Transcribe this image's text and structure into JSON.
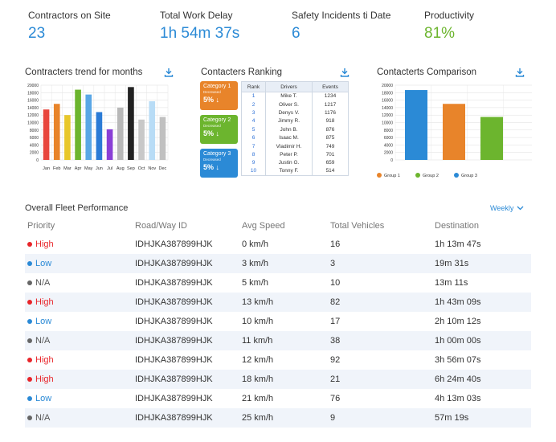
{
  "kpis": [
    {
      "label": "Contractors on Site",
      "value": "23",
      "color": "#2b8ad6"
    },
    {
      "label": "Total Work Delay",
      "value": "1h 54m 37s",
      "color": "#2b8ad6"
    },
    {
      "label": "Safety Incidents ti Date",
      "value": "6",
      "color": "#2b8ad6"
    },
    {
      "label": "Productivity",
      "value": "81%",
      "color": "#6cb52e"
    }
  ],
  "trend": {
    "title": "Contracters trend for months",
    "download_icon": "download-icon",
    "chart_data": {
      "type": "bar",
      "categories": [
        "Jan",
        "Feb",
        "Mar",
        "Apr",
        "May",
        "Jun",
        "Jul",
        "Aug",
        "Sep",
        "Oct",
        "Nov",
        "Dec"
      ],
      "values": [
        13500,
        15000,
        12000,
        18800,
        17500,
        12800,
        8200,
        14000,
        19500,
        10800,
        15700,
        11500
      ],
      "colors": [
        "#e8453c",
        "#e8842a",
        "#e8c72a",
        "#6cb52e",
        "#5aa7e6",
        "#2b7bd6",
        "#8a3fd6",
        "#b8b8b8",
        "#222222",
        "#c8c8c8",
        "#b8dcf6",
        "#c0c0c0"
      ],
      "ylim": [
        0,
        20000
      ],
      "yticks": [
        "20000",
        "18000",
        "16000",
        "14000",
        "12000",
        "10000",
        "8000",
        "6000",
        "4000",
        "2000",
        "0"
      ]
    }
  },
  "ranking": {
    "title": "Contacters Ranking",
    "categories": [
      {
        "title": "Category 1",
        "sub": "Decreased",
        "pct": "5% ↓",
        "color": "#e8842a"
      },
      {
        "title": "Category 2",
        "sub": "Decreased",
        "pct": "5% ↓",
        "color": "#6cb52e"
      },
      {
        "title": "Category 3",
        "sub": "Decreased",
        "pct": "5% ↓",
        "color": "#2b8ad6"
      }
    ],
    "headers": [
      "Rank",
      "Drivers",
      "Events"
    ],
    "rows": [
      {
        "rank": "1",
        "driver": "Mike T.",
        "events": "1234"
      },
      {
        "rank": "2",
        "driver": "Oliver S.",
        "events": "1217"
      },
      {
        "rank": "3",
        "driver": "Denys V.",
        "events": "1176"
      },
      {
        "rank": "4",
        "driver": "Jimmy R.",
        "events": "918"
      },
      {
        "rank": "5",
        "driver": "John B.",
        "events": "876"
      },
      {
        "rank": "6",
        "driver": "Isaac M.",
        "events": "875"
      },
      {
        "rank": "7",
        "driver": "Vladimir H.",
        "events": "749"
      },
      {
        "rank": "8",
        "driver": "Peter P.",
        "events": "701"
      },
      {
        "rank": "9",
        "driver": "Justin G.",
        "events": "659"
      },
      {
        "rank": "10",
        "driver": "Tonny F.",
        "events": "514"
      }
    ]
  },
  "comparison": {
    "title": "Contacterts Comparison",
    "chart_data": {
      "type": "bar",
      "categories": [
        "Group 1",
        "Group 2",
        "Group 3"
      ],
      "series": [
        {
          "name": "Group 3",
          "value": 18700,
          "color": "#2b8ad6"
        },
        {
          "name": "Group 1",
          "value": 15000,
          "color": "#e8842a"
        },
        {
          "name": "Group 2",
          "value": 11500,
          "color": "#6cb52e"
        }
      ],
      "legend": [
        {
          "name": "Group 1",
          "color": "#e8842a"
        },
        {
          "name": "Group 2",
          "color": "#6cb52e"
        },
        {
          "name": "Group 3",
          "color": "#2b8ad6"
        }
      ],
      "ylim": [
        0,
        20000
      ],
      "yticks": [
        "20000",
        "18000",
        "16000",
        "14000",
        "12000",
        "10000",
        "8000",
        "6000",
        "4000",
        "2000",
        "0"
      ],
      "legend_position": "bottom-left"
    }
  },
  "fleet": {
    "title": "Overall Fleet Performance",
    "filter": "Weekly",
    "headers": [
      "Priority",
      "Road/Way ID",
      "Avg Speed",
      "Total Vehicles",
      "Destination"
    ],
    "priority_colors": {
      "High": "#e8252a",
      "Low": "#2b8ad6",
      "N/A": "#666666"
    },
    "rows": [
      {
        "priority": "High",
        "road": "IDHJKA387899HJK",
        "speed": "0 km/h",
        "vehicles": "16",
        "dest": "1h 13m 47s"
      },
      {
        "priority": "Low",
        "road": "IDHJKA387899HJK",
        "speed": "3 km/h",
        "vehicles": "3",
        "dest": "19m 31s"
      },
      {
        "priority": "N/A",
        "road": "IDHJKA387899HJK",
        "speed": "5 km/h",
        "vehicles": "10",
        "dest": "13m 11s"
      },
      {
        "priority": "High",
        "road": "IDHJKA387899HJK",
        "speed": "13 km/h",
        "vehicles": "82",
        "dest": "1h 43m 09s"
      },
      {
        "priority": "Low",
        "road": "IDHJKA387899HJK",
        "speed": "10 km/h",
        "vehicles": "17",
        "dest": "2h 10m 12s"
      },
      {
        "priority": "N/A",
        "road": "IDHJKA387899HJK",
        "speed": "11 km/h",
        "vehicles": "38",
        "dest": "1h 00m 00s"
      },
      {
        "priority": "High",
        "road": "IDHJKA387899HJK",
        "speed": "12 km/h",
        "vehicles": "92",
        "dest": "3h 56m 07s"
      },
      {
        "priority": "High",
        "road": "IDHJKA387899HJK",
        "speed": "18 km/h",
        "vehicles": "21",
        "dest": "6h 24m 40s"
      },
      {
        "priority": "Low",
        "road": "IDHJKA387899HJK",
        "speed": "21 km/h",
        "vehicles": "76",
        "dest": "4h 13m 03s"
      },
      {
        "priority": "N/A",
        "road": "IDHJKA387899HJK",
        "speed": "25 km/h",
        "vehicles": "9",
        "dest": "57m 19s"
      }
    ]
  }
}
